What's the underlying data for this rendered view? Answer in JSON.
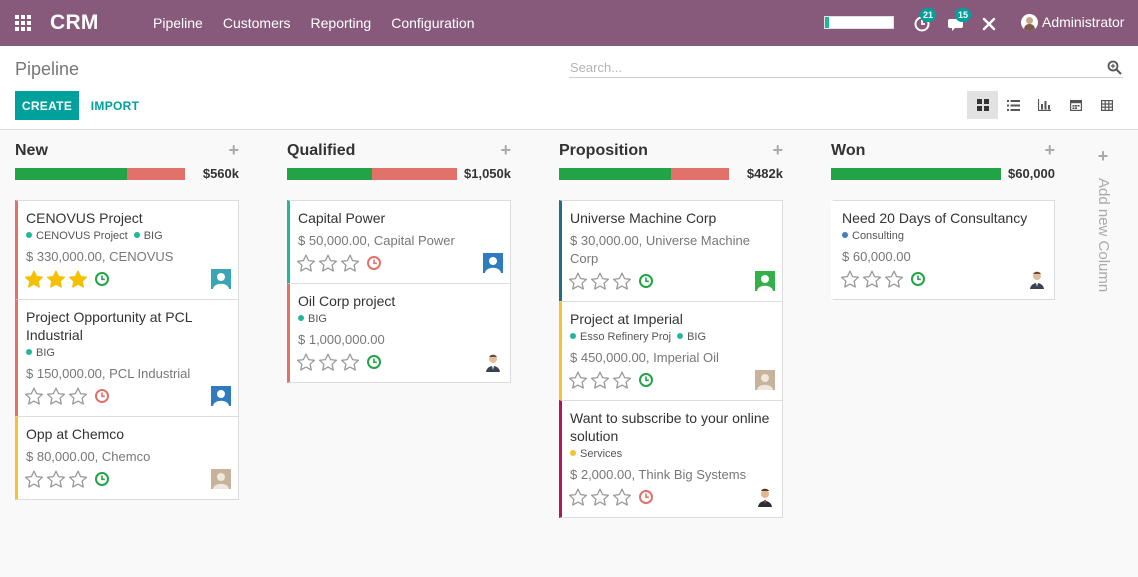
{
  "navbar": {
    "brand": "CRM",
    "menu": [
      "Pipeline",
      "Customers",
      "Reporting",
      "Configuration"
    ],
    "progress_fraction": 0.06,
    "activities_count": "21",
    "messages_count": "15",
    "user_name": "Administrator"
  },
  "control_panel": {
    "title": "Pipeline",
    "search_placeholder": "Search...",
    "create_label": "CREATE",
    "import_label": "IMPORT"
  },
  "kanban": {
    "add_column_label": "Add new Column",
    "columns": [
      {
        "title": "New",
        "total": "$560k",
        "won_fraction": 0.66,
        "cards": [
          {
            "title": "CENOVUS Project",
            "tags": [
              {
                "name": "CENOVUS Project",
                "color": "#21b799"
              },
              {
                "name": "BIG",
                "color": "#21b799"
              }
            ],
            "amount": "$ 330,000.00, CENOVUS",
            "stars": 3,
            "activity": "green",
            "border": "#e0726a",
            "avatar": "teal"
          },
          {
            "title": "Project Opportunity at PCL Industrial",
            "tags": [
              {
                "name": "BIG",
                "color": "#21b799"
              }
            ],
            "amount": "$ 150,000.00, PCL Industrial",
            "stars": 0,
            "activity": "red",
            "border": "#e0726a",
            "avatar": "blue"
          },
          {
            "title": "Opp at Chemco",
            "tags": [],
            "amount": "$ 80,000.00, Chemco",
            "stars": 0,
            "activity": "green",
            "border": "#f4c430",
            "avatar": "tan"
          }
        ]
      },
      {
        "title": "Qualified",
        "total": "$1,050k",
        "won_fraction": 0.5,
        "cards": [
          {
            "title": "Capital Power",
            "tags": [],
            "amount": "$ 50,000.00, Capital Power",
            "stars": 0,
            "activity": "red",
            "border": "#21b799",
            "avatar": "blue"
          },
          {
            "title": "Oil Corp project",
            "tags": [
              {
                "name": "BIG",
                "color": "#21b799"
              }
            ],
            "amount": "$ 1,000,000.00",
            "stars": 0,
            "activity": "green",
            "border": "#e0726a",
            "avatar": "person"
          }
        ]
      },
      {
        "title": "Proposition",
        "total": "$482k",
        "won_fraction": 0.66,
        "cards": [
          {
            "title": "Universe Machine Corp",
            "tags": [],
            "amount": "$ 30,000.00, Universe Machine Corp",
            "stars": 0,
            "activity": "green",
            "border": "#1f6f8b",
            "avatar": "green"
          },
          {
            "title": "Project at Imperial",
            "tags": [
              {
                "name": "Esso Refinery Proj",
                "color": "#21b799"
              },
              {
                "name": "BIG",
                "color": "#21b799"
              }
            ],
            "amount": "$ 450,000.00, Imperial Oil",
            "stars": 0,
            "activity": "green",
            "border": "#f4c430",
            "avatar": "tan"
          },
          {
            "title": "Want to subscribe to your online solution",
            "tags": [
              {
                "name": "Services",
                "color": "#f4c430"
              }
            ],
            "amount": "$ 2,000.00, Think Big Systems",
            "stars": 0,
            "activity": "red",
            "border": "#b0185f",
            "avatar": "person2"
          }
        ]
      },
      {
        "title": "Won",
        "total": "$60,000",
        "won_fraction": 1.0,
        "cards": [
          {
            "title": "Need 20 Days of Consultancy",
            "tags": [
              {
                "name": "Consulting",
                "color": "#3d7fc1"
              }
            ],
            "amount": "$ 60,000.00",
            "stars": 0,
            "activity": "green",
            "border": "transparent",
            "avatar": "person"
          }
        ]
      }
    ]
  }
}
